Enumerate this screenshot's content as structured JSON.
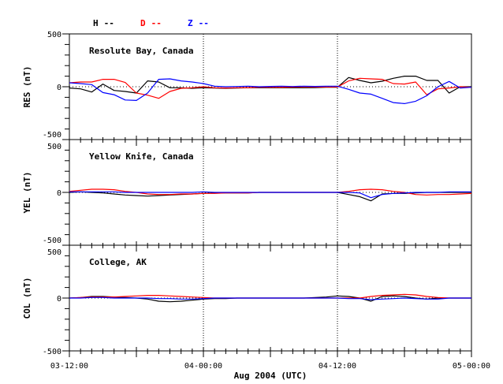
{
  "chart_data": {
    "type": "line",
    "xlabel": "Aug 2004 (UTC)",
    "x_unit": "hours since 03-12:00",
    "x": [
      0,
      1,
      2,
      3,
      4,
      5,
      6,
      7,
      8,
      9,
      10,
      11,
      12,
      13,
      14,
      15,
      16,
      17,
      18,
      19,
      20,
      21,
      22,
      23,
      24,
      25,
      26,
      27,
      28,
      29,
      30,
      31,
      32,
      33,
      34,
      35,
      36
    ],
    "xlim": [
      0,
      36
    ],
    "x_ticks": [
      {
        "value": 0,
        "label": "03-12:00"
      },
      {
        "value": 12,
        "label": "04-00:00"
      },
      {
        "value": 24,
        "label": "04-12:00"
      },
      {
        "value": 36,
        "label": "05-00:00"
      }
    ],
    "legend": [
      {
        "name": "H",
        "suffix": "--",
        "color": "#000000"
      },
      {
        "name": "D",
        "suffix": "--",
        "color": "#ff0000"
      },
      {
        "name": "Z",
        "suffix": "--",
        "color": "#0000ff"
      }
    ],
    "legend_placement": "top",
    "panels": [
      {
        "title": "Resolute Bay, Canada",
        "ylabel": "RES (nT)",
        "ylim": [
          -500,
          500
        ],
        "y_tick_labels": [
          "500",
          "0",
          "-500"
        ],
        "series": [
          {
            "name": "H",
            "values": [
              -12,
              -20,
              -50,
              25,
              -35,
              -45,
              -60,
              55,
              45,
              -10,
              -10,
              -15,
              -10,
              -12,
              -15,
              -12,
              -10,
              -10,
              -8,
              -10,
              -8,
              -10,
              -8,
              -5,
              -5,
              87,
              60,
              37,
              52,
              80,
              100,
              100,
              60,
              60,
              -60,
              0,
              0
            ]
          },
          {
            "name": "D",
            "values": [
              37,
              45,
              45,
              70,
              70,
              40,
              -60,
              -80,
              -110,
              -45,
              -15,
              -10,
              0,
              -10,
              -12,
              -10,
              -8,
              -5,
              -5,
              -5,
              -3,
              0,
              -3,
              -2,
              -2,
              55,
              80,
              75,
              70,
              30,
              25,
              45,
              -75,
              -20,
              -12,
              0,
              -5
            ]
          },
          {
            "name": "Z",
            "values": [
              37,
              30,
              20,
              -55,
              -75,
              -125,
              -130,
              -60,
              70,
              75,
              55,
              45,
              30,
              5,
              0,
              2,
              5,
              0,
              3,
              5,
              2,
              5,
              3,
              5,
              5,
              -25,
              -60,
              -70,
              -110,
              -150,
              -160,
              -137,
              -85,
              0,
              50,
              -12,
              -5
            ]
          }
        ]
      },
      {
        "title": "Yellow Knife, Canada",
        "ylabel": "YEL (nT)",
        "ylim": [
          -500,
          500
        ],
        "y_tick_labels": [
          "500",
          "0",
          "-500"
        ],
        "series": [
          {
            "name": "H",
            "values": [
              0,
              5,
              0,
              -5,
              -15,
              -25,
              -30,
              -35,
              -30,
              -25,
              -20,
              -15,
              -10,
              -5,
              -5,
              -5,
              -5,
              0,
              0,
              0,
              0,
              0,
              0,
              0,
              0,
              -20,
              -40,
              -80,
              -15,
              -10,
              -10,
              -5,
              0,
              0,
              0,
              0,
              0
            ]
          },
          {
            "name": "D",
            "values": [
              10,
              20,
              30,
              30,
              25,
              10,
              0,
              -15,
              -20,
              -20,
              -15,
              -15,
              -10,
              -10,
              -5,
              -5,
              -5,
              0,
              0,
              0,
              0,
              0,
              0,
              0,
              0,
              10,
              25,
              30,
              25,
              10,
              0,
              -20,
              -25,
              -20,
              -20,
              -15,
              -10
            ]
          },
          {
            "name": "Z",
            "values": [
              5,
              5,
              5,
              5,
              5,
              0,
              0,
              0,
              0,
              0,
              0,
              0,
              5,
              0,
              0,
              0,
              0,
              0,
              0,
              0,
              0,
              0,
              0,
              0,
              0,
              0,
              -5,
              -50,
              -20,
              -10,
              -5,
              0,
              0,
              0,
              5,
              5,
              5
            ]
          }
        ]
      },
      {
        "title": "College, AK",
        "ylabel": "COL (nT)",
        "ylim": [
          -500,
          500
        ],
        "y_tick_labels": [
          "500",
          "0",
          "-500"
        ],
        "series": [
          {
            "name": "H",
            "values": [
              0,
              5,
              15,
              15,
              10,
              5,
              0,
              -10,
              -30,
              -35,
              -30,
              -20,
              -10,
              -5,
              -5,
              0,
              0,
              0,
              0,
              0,
              0,
              0,
              5,
              10,
              20,
              15,
              0,
              -30,
              15,
              20,
              15,
              0,
              -10,
              0,
              0,
              0,
              0
            ]
          },
          {
            "name": "D",
            "values": [
              0,
              5,
              10,
              10,
              10,
              15,
              20,
              25,
              25,
              20,
              15,
              10,
              5,
              0,
              0,
              0,
              0,
              0,
              0,
              0,
              0,
              0,
              0,
              0,
              0,
              0,
              0,
              15,
              25,
              30,
              35,
              30,
              15,
              5,
              0,
              0,
              0
            ]
          },
          {
            "name": "Z",
            "values": [
              0,
              0,
              5,
              5,
              0,
              0,
              0,
              0,
              -5,
              -5,
              -10,
              -10,
              -5,
              0,
              0,
              0,
              0,
              0,
              0,
              0,
              0,
              0,
              0,
              0,
              0,
              -5,
              -5,
              -15,
              -10,
              -5,
              0,
              -5,
              -10,
              -10,
              0,
              0,
              0
            ]
          }
        ]
      }
    ]
  }
}
